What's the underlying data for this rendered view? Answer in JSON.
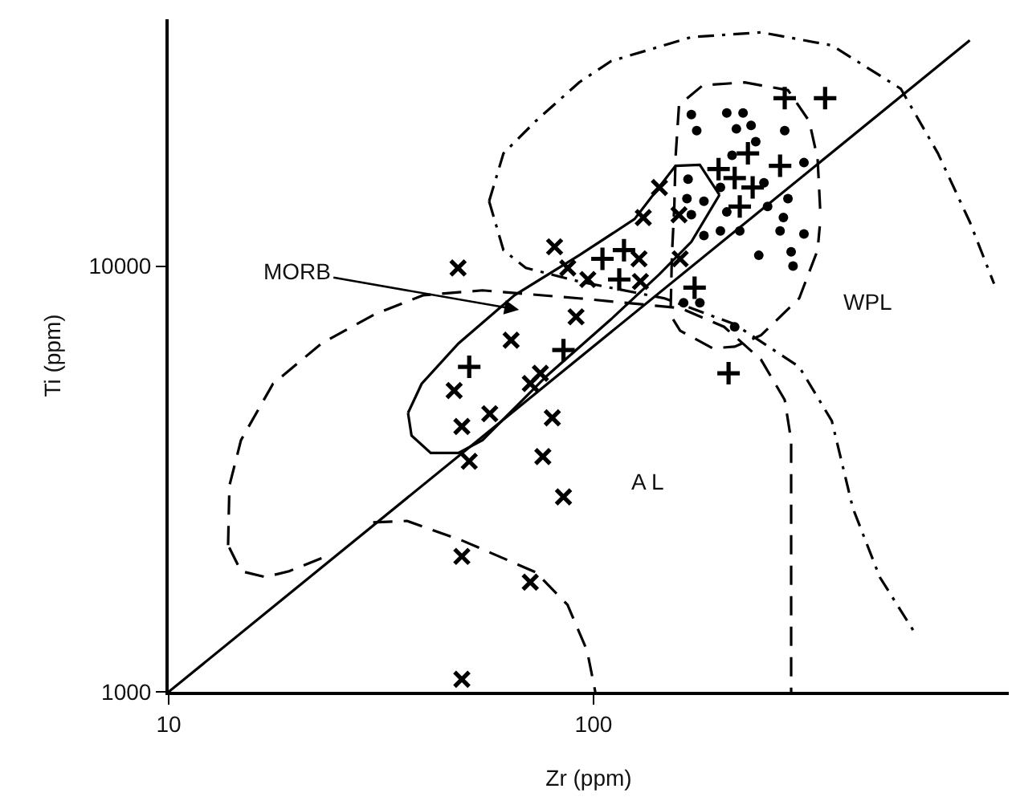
{
  "chart_data": {
    "type": "scatter",
    "xlabel": "Zr (ppm)",
    "ylabel": "Ti (ppm)",
    "log": "xy",
    "grid": false,
    "xlim": [
      10,
      950
    ],
    "ylim": [
      1000,
      38000
    ],
    "xticks": [
      10,
      100
    ],
    "yticks": [
      1000,
      10000
    ],
    "annotations": [
      "MORB",
      "WPL",
      "A L"
    ],
    "series": [
      {
        "type": "line",
        "marker": "none",
        "line_style": "solid",
        "color": "#000000",
        "x": [
          10,
          769
        ],
        "values": [
          1000,
          33900
        ]
      },
      {
        "type": "line",
        "marker": "none",
        "line_style": "solid",
        "color": "#000000",
        "x": [
          36.6,
          39.4,
          48.1,
          65.2,
          92.5,
          125,
          156,
          178,
          198
        ],
        "values": [
          4520,
          5290,
          6580,
          8540,
          10600,
          12900,
          17200,
          17300,
          14700
        ]
      },
      {
        "type": "line",
        "marker": "none",
        "line_style": "solid",
        "color": "#000000",
        "x": [
          36.6,
          37.3,
          41.4,
          48.1,
          54.8,
          77.6,
          110,
          143,
          170,
          198
        ],
        "values": [
          4520,
          4000,
          3640,
          3640,
          3900,
          5520,
          7500,
          9570,
          11400,
          14700
        ]
      },
      {
        "type": "line",
        "marker": "none",
        "line_style": "dashed",
        "color": "#000000",
        "x": [
          22.9,
          19.2,
          16.9,
          14.8,
          13.8
        ],
        "values": [
          2060,
          1920,
          1860,
          1920,
          2210
        ]
      },
      {
        "type": "line",
        "marker": "none",
        "line_style": "dashed",
        "color": "#000000",
        "x": [
          13.8,
          13.9,
          14.8,
          17.6,
          22.9,
          30.5,
          39.7,
          54.8,
          92.5,
          160,
          203,
          248,
          282,
          292,
          292
        ],
        "values": [
          2210,
          3050,
          3900,
          5290,
          6580,
          7700,
          8540,
          8770,
          8400,
          7970,
          7200,
          6030,
          4850,
          3900,
          1000
        ]
      },
      {
        "type": "line",
        "marker": "none",
        "line_style": "dashed",
        "color": "#000000",
        "x": [
          30.3,
          36.4,
          48.9,
          73.1,
          86.9,
          96.6,
          101
        ],
        "values": [
          2500,
          2520,
          2270,
          1910,
          1600,
          1250,
          1000
        ]
      },
      {
        "type": "line",
        "marker": "none",
        "line_style": "dashed",
        "color": "#000000",
        "x": [
          152,
          153,
          155,
          156,
          159,
          181,
          227,
          287,
          322,
          337,
          342
        ],
        "values": [
          7970,
          10600,
          13800,
          17900,
          23900,
          26600,
          27000,
          25900,
          21900,
          17900,
          13400
        ]
      },
      {
        "type": "line",
        "marker": "none",
        "line_style": "dashed",
        "color": "#000000",
        "x": [
          154,
          160,
          191,
          215,
          248,
          305,
          337,
          341
        ],
        "values": [
          7500,
          7050,
          6410,
          6470,
          6880,
          8400,
          10900,
          12400
        ]
      },
      {
        "type": "line",
        "marker": "none",
        "line_style": "dashdot",
        "color": "#000000",
        "x": [
          56.8,
          61.4,
          73.1,
          92.5,
          110,
          170,
          248,
          364,
          529,
          647,
          769,
          877
        ],
        "values": [
          14200,
          18400,
          21900,
          27000,
          30300,
          34500,
          35400,
          33000,
          26100,
          18400,
          12700,
          9090
        ]
      },
      {
        "type": "line",
        "marker": "none",
        "line_style": "dashdot",
        "color": "#000000",
        "x": [
          56.8,
          61.4,
          69.3,
          92.5,
          147,
          215,
          305,
          364,
          408,
          472,
          567
        ],
        "values": [
          14200,
          10900,
          9900,
          9200,
          8400,
          7300,
          5800,
          4330,
          2700,
          1860,
          1390
        ]
      },
      {
        "marker": "x",
        "color": "#000000",
        "x": [
          48,
          64,
          71,
          75,
          81,
          87,
          91,
          97,
          128,
          129,
          131,
          143,
          159,
          160,
          47,
          49,
          57,
          80,
          51,
          76,
          85,
          49,
          71,
          49
        ],
        "values": [
          9900,
          6700,
          5300,
          5600,
          11100,
          9900,
          7600,
          9300,
          10400,
          9200,
          13000,
          15300,
          13200,
          10400,
          5100,
          4200,
          4500,
          4400,
          3480,
          3570,
          2870,
          2080,
          1810,
          1070
        ]
      },
      {
        "marker": "cross",
        "color": "#000000",
        "x": [
          51,
          85,
          105,
          118,
          115,
          173,
          208,
          197,
          215,
          237,
          221,
          231,
          275,
          282,
          351
        ],
        "values": [
          5800,
          6350,
          10400,
          10900,
          9300,
          8900,
          5600,
          16900,
          16100,
          15300,
          13800,
          18400,
          17200,
          24800,
          24800
        ]
      },
      {
        "marker": "circle",
        "color": "#000000",
        "x": [
          170,
          175,
          206,
          225,
          217,
          235,
          282,
          241,
          212,
          313,
          167,
          199,
          252,
          166,
          182,
          206,
          257,
          287,
          170,
          280,
          182,
          199,
          221,
          275,
          313,
          245,
          292,
          295,
          163,
          178,
          215
        ],
        "values": [
          22700,
          20800,
          22900,
          22900,
          21000,
          21400,
          20800,
          19600,
          18200,
          17500,
          16000,
          15300,
          15700,
          14400,
          14200,
          13400,
          13800,
          14400,
          13200,
          13000,
          11800,
          12100,
          12100,
          12100,
          11900,
          10600,
          10800,
          10000,
          8200,
          8200,
          7200
        ]
      }
    ]
  }
}
